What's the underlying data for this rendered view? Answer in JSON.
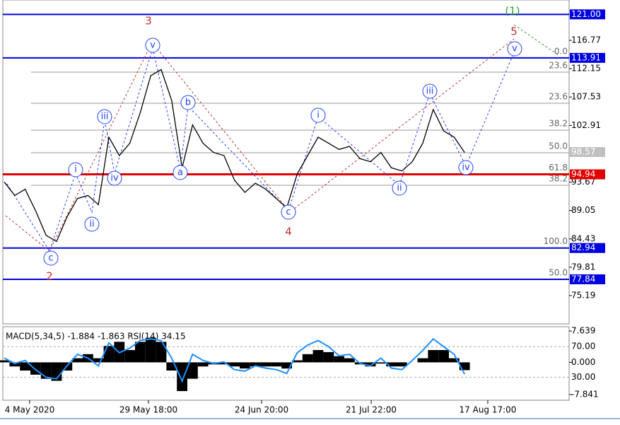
{
  "chart_data": [
    {
      "type": "line",
      "x_labels": [
        "4 May 2020",
        "29 May 18:00",
        "24 Jun 20:00",
        "21 Jul 22:00",
        "17 Aug 17:00"
      ],
      "values": [
        93.7,
        91.5,
        92.5,
        89,
        85,
        84,
        88,
        91,
        91.5,
        90,
        101,
        98,
        100,
        105,
        111,
        112,
        107,
        96,
        103,
        100,
        98.5,
        98,
        94,
        92,
        93.5,
        92.5,
        91,
        89.5,
        95,
        98,
        101,
        100,
        99,
        99.5,
        97.5,
        97,
        98.5,
        96,
        95.5,
        97,
        100,
        105.5,
        102,
        101,
        98.5
      ],
      "color": "#000000",
      "ylim": [
        70.58,
        123.34
      ],
      "yticks": [
        {
          "value": 75.19,
          "label": "75.19"
        },
        {
          "value": 79.81,
          "label": "79.81"
        },
        {
          "value": 84.43,
          "label": "84.43"
        },
        {
          "value": 89.05,
          "label": "89.05"
        },
        {
          "value": 93.67,
          "label": "93.67"
        },
        {
          "value": 102.91,
          "label": "102.91"
        },
        {
          "value": 107.53,
          "label": "107.53"
        },
        {
          "value": 112.15,
          "label": "112.15"
        },
        {
          "value": 116.77,
          "label": "116.77"
        }
      ],
      "levels": [
        {
          "value": 121,
          "label": "121.00",
          "color": "#0000e0"
        },
        {
          "value": 113.91,
          "label": "113.91",
          "color": "#0000e0"
        },
        {
          "value": 94.94,
          "label": "94.94",
          "color": "#e00000"
        },
        {
          "value": 82.94,
          "label": "82.94",
          "color": "#0000e0"
        },
        {
          "value": 77.84,
          "label": "77.84",
          "color": "#0000e0"
        }
      ],
      "last_price": {
        "value": 98.57,
        "label": "98.57"
      },
      "fib_levels": [
        {
          "value": 113.91,
          "label": "0.0"
        },
        {
          "value": 111.59,
          "label": "23.6"
        },
        {
          "value": 106.52,
          "label": "23.6"
        },
        {
          "value": 102.14,
          "label": "38.2"
        },
        {
          "value": 98.46,
          "label": "50.0"
        },
        {
          "value": 94.94,
          "label": "61.8"
        },
        {
          "value": 93.16,
          "label": "38.2"
        },
        {
          "value": 82.94,
          "label": "100.0"
        },
        {
          "value": 77.84,
          "label": "50.0"
        }
      ],
      "wave_labels": [
        "c",
        "i",
        "ii",
        "iii",
        "iv",
        "v",
        "a",
        "b",
        "c",
        "i",
        "ii",
        "iii",
        "iv",
        "v"
      ],
      "wave_numbers": [
        "2",
        "3",
        "4",
        "5",
        "(1)"
      ]
    },
    {
      "type": "macd",
      "title": "MACD(5,34,5) -1.884 -1.863 RSI(14) 34.15",
      "values": [
        0.5,
        -1,
        -2,
        -3,
        -4,
        -4.5,
        -2,
        1,
        2,
        1,
        4,
        5,
        3,
        5,
        6,
        5,
        -2,
        -7,
        -4,
        -1,
        -0.5,
        -0.5,
        -1,
        -1.5,
        -1,
        -1,
        -1,
        -1.5,
        0.5,
        2,
        3,
        2.5,
        1.5,
        1,
        -0.5,
        -1,
        -0.3,
        -1,
        -1,
        0,
        1,
        3,
        3,
        1,
        -1.9
      ],
      "rsi": [
        55,
        48,
        52,
        40,
        30,
        28,
        45,
        60,
        55,
        45,
        75,
        62,
        68,
        78,
        80,
        78,
        55,
        25,
        60,
        52,
        48,
        50,
        40,
        38,
        45,
        42,
        40,
        35,
        62,
        72,
        78,
        70,
        58,
        60,
        48,
        45,
        55,
        42,
        40,
        52,
        65,
        80,
        70,
        60,
        34
      ],
      "rsi_color": "#1e90ff",
      "ylim": [
        -9.24,
        8.69
      ],
      "y2lim": [
        0,
        96
      ],
      "yticks": [
        {
          "value": 7.639,
          "label": "7.639"
        },
        {
          "value": 0,
          "label": "0.000"
        },
        {
          "value": -7.841,
          "label": "-7.841"
        }
      ],
      "y2ticks": [
        {
          "value": 70,
          "label": "70.00"
        },
        {
          "value": 30,
          "label": "30.00"
        }
      ]
    }
  ]
}
